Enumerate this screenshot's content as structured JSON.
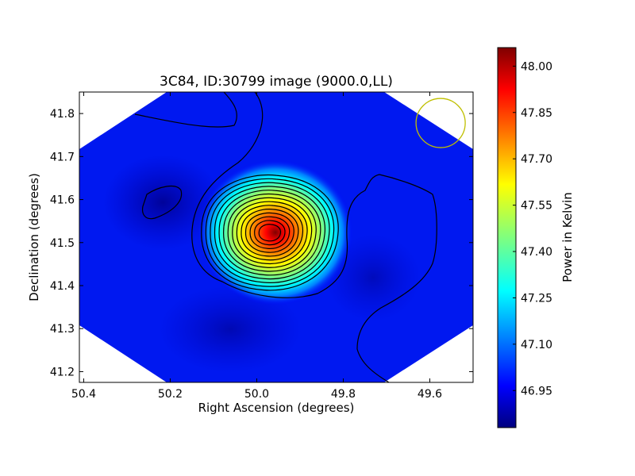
{
  "chart_data": {
    "type": "heatmap",
    "title": "3C84, ID:30799 image (9000.0,LL)",
    "xlabel": "Right Ascension (degrees)",
    "ylabel": "Declination (degrees)",
    "xlim": [
      50.41,
      49.5
    ],
    "ylim": [
      41.175,
      41.85
    ],
    "x_reversed": true,
    "x_ticks": [
      "50.4",
      "50.2",
      "50.0",
      "49.8",
      "49.6"
    ],
    "x_tick_values": [
      50.4,
      50.2,
      50.0,
      49.8,
      49.6
    ],
    "y_ticks": [
      "41.2",
      "41.3",
      "41.4",
      "41.5",
      "41.6",
      "41.7",
      "41.8"
    ],
    "y_tick_values": [
      41.2,
      41.3,
      41.4,
      41.5,
      41.6,
      41.7,
      41.8
    ],
    "colorbar": {
      "label": "Power in Kelvin",
      "min": 46.83,
      "max": 48.06,
      "ticks": [
        "46.95",
        "47.10",
        "47.25",
        "47.40",
        "47.55",
        "47.70",
        "47.85",
        "48.00"
      ],
      "tick_values": [
        46.95,
        47.1,
        47.25,
        47.4,
        47.55,
        47.7,
        47.85,
        48.0
      ],
      "colormap": "jet"
    },
    "peak": {
      "ra": 49.97,
      "dec": 41.523,
      "value": 48.03
    },
    "secondary_minimum": {
      "ra": 50.25,
      "dec": 41.58
    },
    "beam_circle": {
      "ra": 49.575,
      "dec": 41.778,
      "color": "#bfbf00"
    },
    "grid": false,
    "contour_color": "#000000"
  }
}
